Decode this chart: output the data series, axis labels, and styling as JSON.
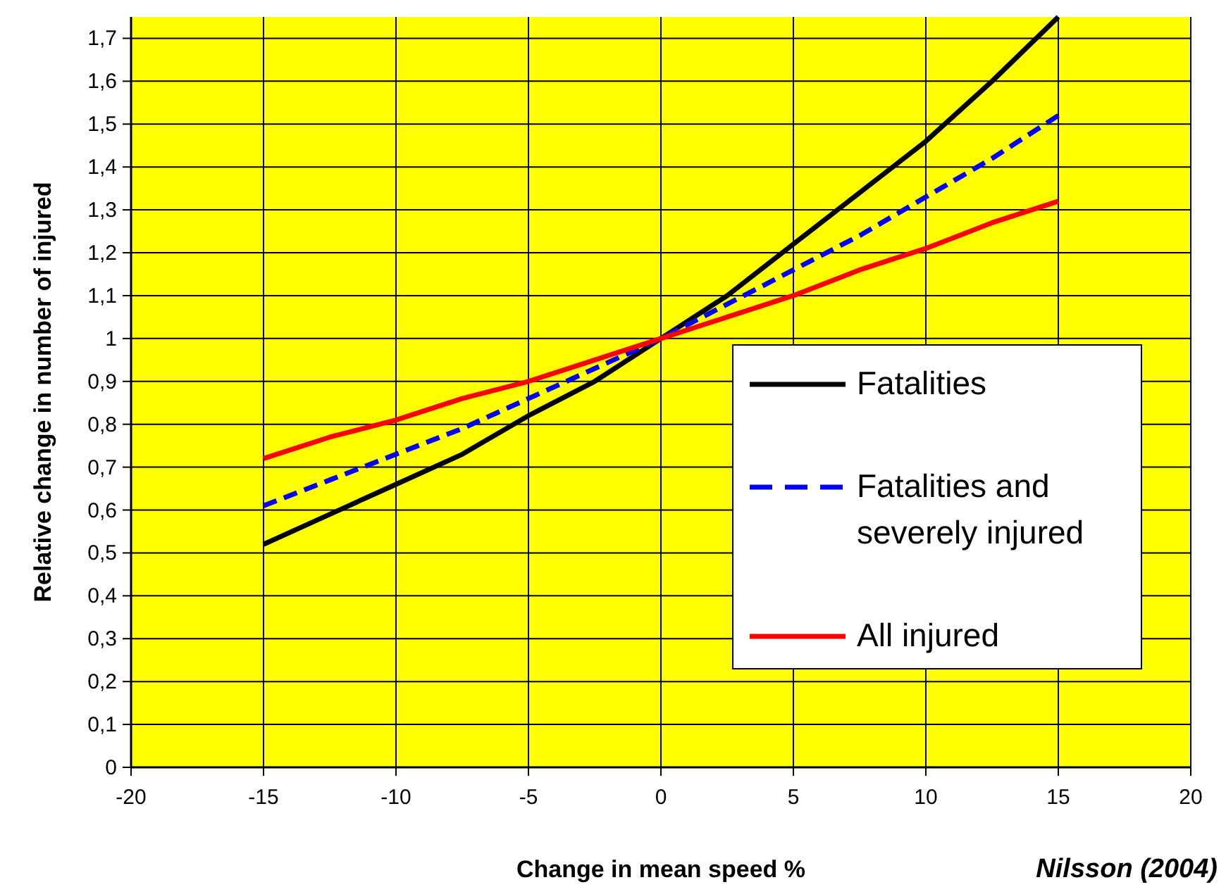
{
  "chart_data": {
    "type": "line",
    "xlabel": "Change in mean speed %",
    "ylabel": "Relative change in number of injured",
    "x": [
      -15,
      -12.5,
      -10,
      -7.5,
      -5,
      -2.5,
      0,
      2.5,
      5,
      7.5,
      10,
      12.5,
      15
    ],
    "series": [
      {
        "name": "Fatalities",
        "color": "#000000",
        "line_style": "solid",
        "values": [
          0.52,
          0.59,
          0.66,
          0.73,
          0.82,
          0.9,
          1,
          1.1,
          1.22,
          1.34,
          1.46,
          1.6,
          1.75
        ]
      },
      {
        "name": "Fatalities and severely injured",
        "color": "#0000ff",
        "line_style": "dashed",
        "values": [
          0.61,
          0.67,
          0.73,
          0.79,
          0.86,
          0.93,
          1,
          1.08,
          1.16,
          1.24,
          1.33,
          1.42,
          1.52
        ]
      },
      {
        "name": "All injured",
        "color": "#ff0000",
        "line_style": "solid",
        "values": [
          0.72,
          0.77,
          0.81,
          0.86,
          0.9,
          0.95,
          1,
          1.05,
          1.1,
          1.16,
          1.21,
          1.27,
          1.32
        ]
      }
    ],
    "xlim": [
      -20,
      20
    ],
    "xticks": [
      -20,
      -15,
      -10,
      -5,
      0,
      5,
      10,
      15,
      20
    ],
    "ylim": [
      0,
      1.75
    ],
    "yticks": [
      0,
      {
        "value": 0.1,
        "label": "0,1"
      },
      {
        "value": 0.2,
        "label": "0,2"
      },
      {
        "value": 0.3,
        "label": "0,3"
      },
      {
        "value": 0.4,
        "label": "0,4"
      },
      {
        "value": 0.5,
        "label": "0,5"
      },
      {
        "value": 0.6,
        "label": "0,6"
      },
      {
        "value": 0.7,
        "label": "0,7"
      },
      {
        "value": 0.8,
        "label": "0,8"
      },
      {
        "value": 0.9,
        "label": "0,9"
      },
      1,
      {
        "value": 1.1,
        "label": "1,1"
      },
      {
        "value": 1.2,
        "label": "1,2"
      },
      {
        "value": 1.3,
        "label": "1,3"
      },
      {
        "value": 1.4,
        "label": "1,4"
      },
      {
        "value": 1.5,
        "label": "1,5"
      },
      {
        "value": 1.6,
        "label": "1,6"
      },
      {
        "value": 1.7,
        "label": "1,7"
      }
    ],
    "grid": true,
    "legend": "bottom right",
    "marker": "none",
    "annotations": [
      "Nilsson (2004)"
    ]
  }
}
